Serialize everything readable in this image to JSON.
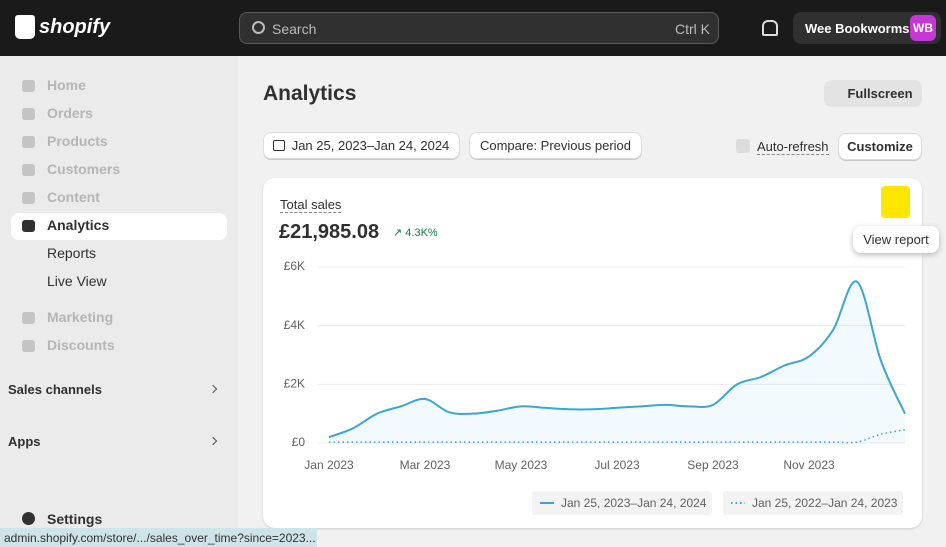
{
  "topbar": {
    "logo": "shopify",
    "search": "Search",
    "shortcut": "Ctrl K",
    "store": "Wee Bookworms",
    "avatar": "WB"
  },
  "sidebar": {
    "items": [
      "Home",
      "Orders",
      "Products",
      "Customers",
      "Content",
      "Analytics",
      "Reports",
      "Live View",
      "Marketing",
      "Discounts"
    ],
    "sections": [
      "Sales channels",
      "Apps"
    ],
    "settings": "Settings"
  },
  "page": {
    "title": "Analytics",
    "fullscreen": "Fullscreen",
    "date_range": "Jan 25, 2023–Jan 24, 2024",
    "compare": "Compare: Previous period",
    "auto_refresh": "Auto-refresh",
    "customize": "Customize"
  },
  "card": {
    "metric": "Total sales",
    "total": "£21,985.08",
    "change": "4.3K%",
    "tooltip": "View report"
  },
  "chart_data": {
    "type": "line",
    "categories": [
      "Jan 2023",
      null,
      null,
      null,
      "Mar 2023",
      null,
      null,
      null,
      "May 2023",
      null,
      null,
      null,
      "Jul 2023",
      null,
      null,
      null,
      "Sep 2023",
      null,
      null,
      null,
      "Nov 2023",
      null,
      null,
      null,
      null
    ],
    "series": [
      {
        "name": "Jan 25, 2023–Jan 24, 2024",
        "color": "#3aa6d6",
        "dashed": false,
        "values": [
          200,
          500,
          1000,
          1250,
          1500,
          1050,
          1000,
          1100,
          1250,
          1200,
          1150,
          1150,
          1200,
          1250,
          1300,
          1250,
          1300,
          2000,
          2250,
          2650,
          2950,
          3850,
          5500,
          2800,
          1000
        ]
      },
      {
        "name": "Jan 25, 2022–Jan 24, 2023",
        "color": "#3aa6d6",
        "dashed": true,
        "values": [
          30,
          30,
          30,
          30,
          30,
          30,
          30,
          30,
          30,
          30,
          30,
          30,
          30,
          30,
          30,
          30,
          30,
          30,
          30,
          30,
          30,
          30,
          30,
          300,
          450
        ]
      }
    ],
    "ylim": [
      0,
      6000
    ],
    "yticks": [
      {
        "value": 0,
        "label": "£0"
      },
      {
        "value": 2000,
        "label": "£2K"
      },
      {
        "value": 4000,
        "label": "£4K"
      },
      {
        "value": 6000,
        "label": "£6K"
      }
    ],
    "grid": true
  },
  "status_url": "admin.shopify.com/store/.../sales_over_time?since=2023..."
}
